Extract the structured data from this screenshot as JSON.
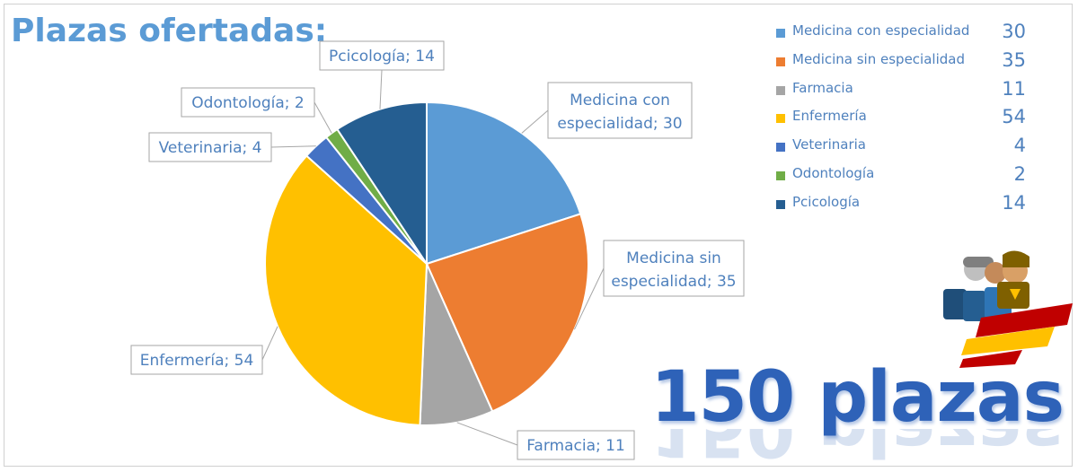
{
  "header": {
    "title": "Plazas ofertadas:"
  },
  "chart_data": {
    "type": "pie",
    "categories": [
      "Medicina con especialidad",
      "Medicina sin especialidad",
      "Farmacia",
      "Enfermería",
      "Veterinaria",
      "Odontología",
      "Pcicología"
    ],
    "values": [
      30,
      35,
      11,
      54,
      4,
      2,
      14
    ],
    "data_labels": [
      "Medicina con especialidad; 30",
      "Medicina sin especialidad; 35",
      "Farmacia; 11",
      "Enfermería; 54",
      "Veterinaria; 4",
      "Odontología; 2",
      "Pcicología; 14"
    ],
    "colors": [
      "#5b9bd5",
      "#ed7d31",
      "#a5a5a5",
      "#ffc000",
      "#4472c4",
      "#70ad47",
      "#255e91"
    ],
    "legend": "top-right"
  },
  "legend": {
    "items": [
      {
        "label": "Medicina con especialidad",
        "value": "30",
        "color": "#5b9bd5"
      },
      {
        "label": "Medicina sin especialidad",
        "value": "35",
        "color": "#ed7d31"
      },
      {
        "label": "Farmacia",
        "value": "11",
        "color": "#a5a5a5"
      },
      {
        "label": "Enfermería",
        "value": "54",
        "color": "#ffc000"
      },
      {
        "label": "Veterinaria",
        "value": "4",
        "color": "#4472c4"
      },
      {
        "label": "Odontología",
        "value": "2",
        "color": "#70ad47"
      },
      {
        "label": "Pcicología",
        "value": "14",
        "color": "#255e91"
      }
    ]
  },
  "total": {
    "text": "150 plazas"
  },
  "logo": {
    "icon": "military-health-emblem-icon"
  }
}
